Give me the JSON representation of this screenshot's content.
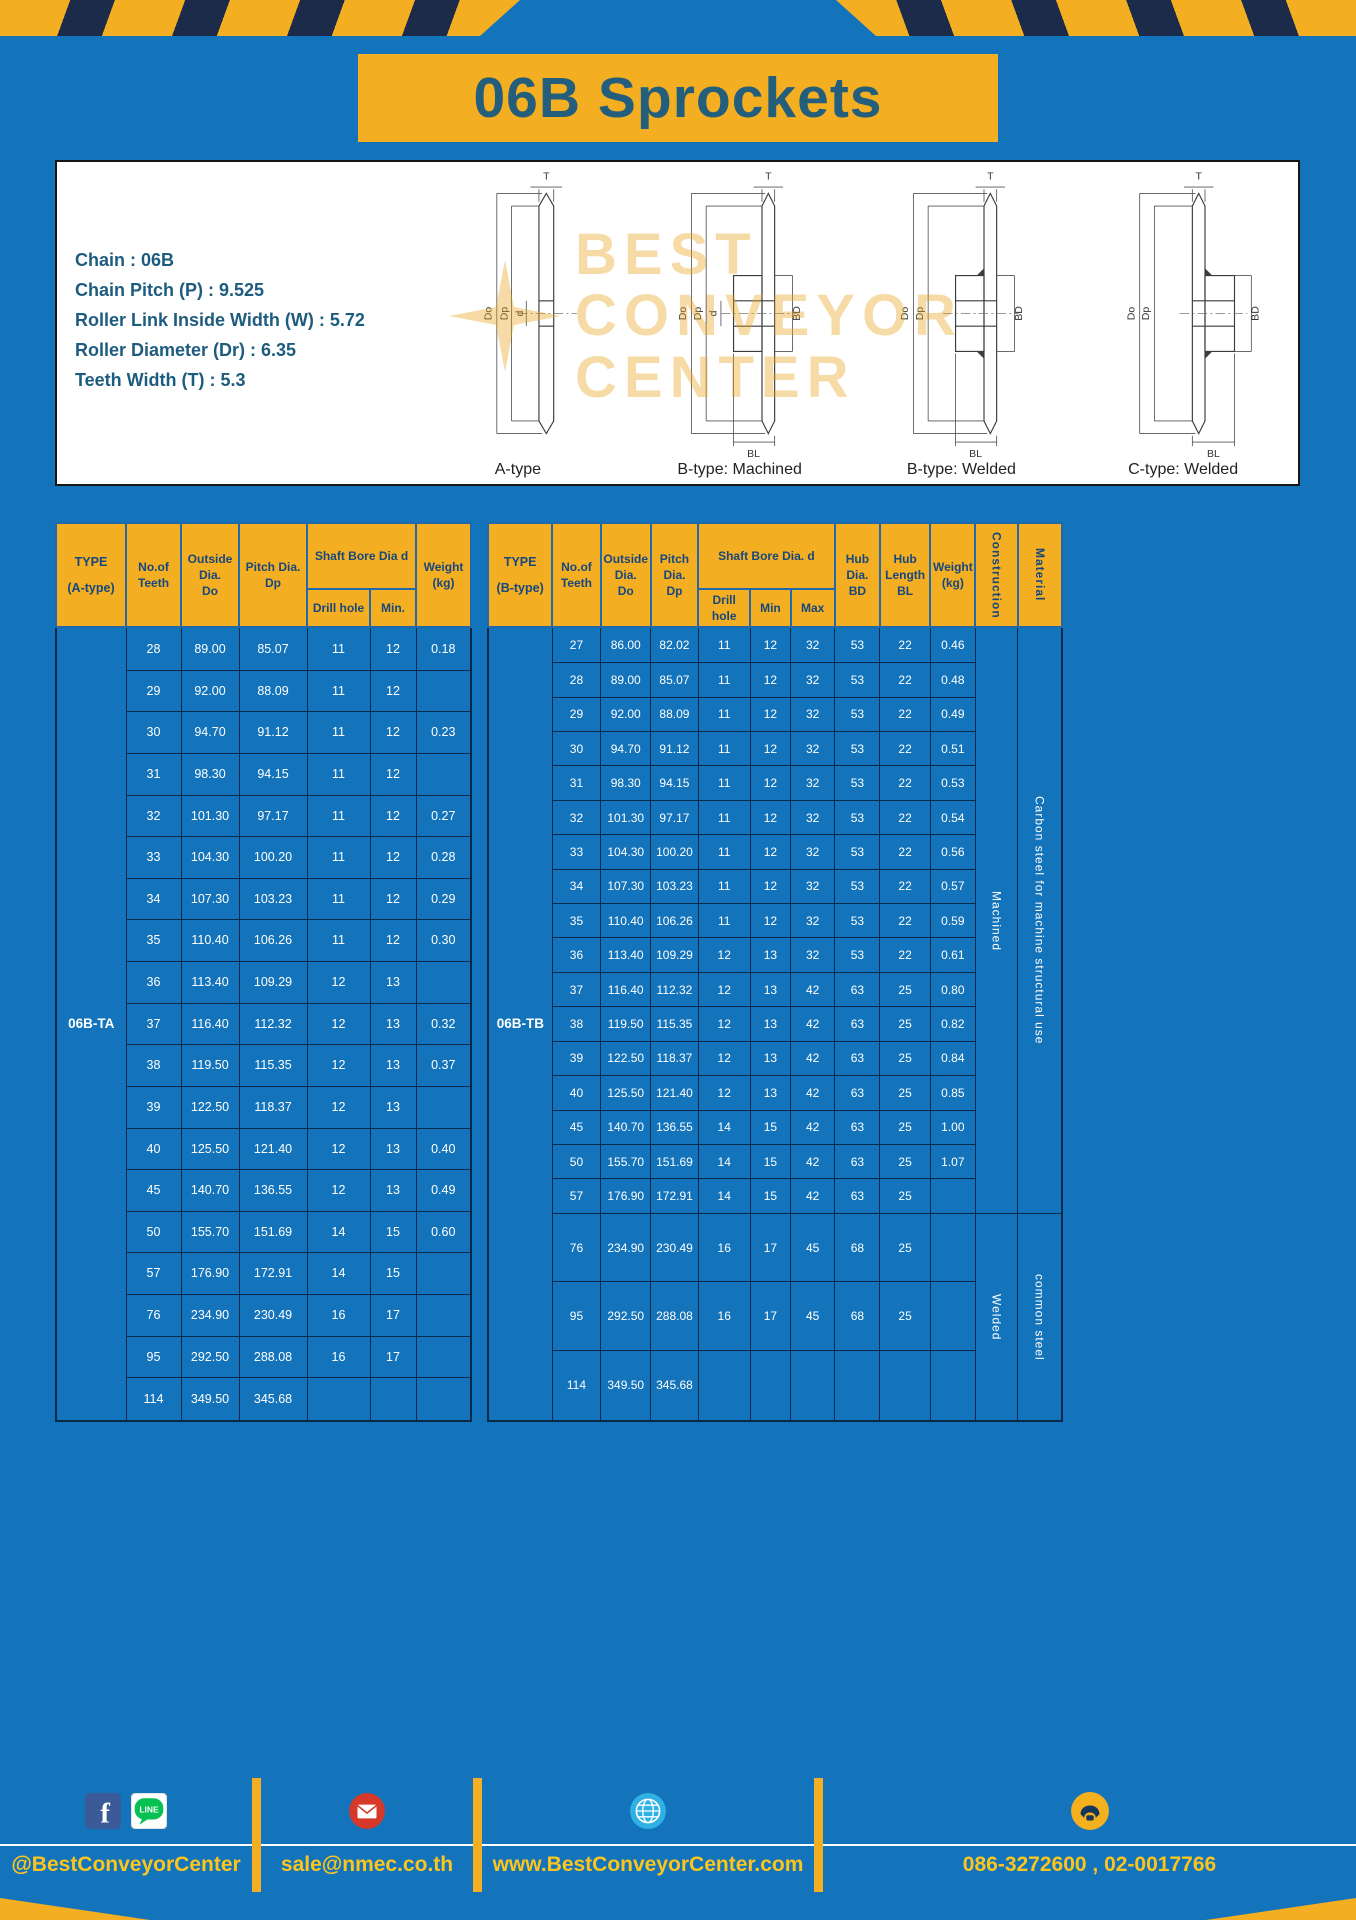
{
  "page": {
    "title": "06B Sprockets"
  },
  "specs": {
    "lines": [
      "Chain : 06B",
      "Chain Pitch (P) : 9.525",
      "Roller Link Inside Width (W) : 5.72",
      "Roller Diameter (Dr) : 6.35",
      "Teeth Width (T) : 5.3"
    ]
  },
  "drawings": {
    "captions": [
      "A-type",
      "B-type: Machined",
      "B-type: Welded",
      "C-type: Welded"
    ],
    "dims": {
      "t": "T",
      "outside": "Do",
      "pitch": "Dp",
      "bore": "d",
      "hub": "BD",
      "hub_len": "BL"
    },
    "watermark": [
      "BEST",
      "CONVEYOR",
      "CENTER"
    ]
  },
  "tables": {
    "left": {
      "headers": {
        "type": "TYPE\n(A-type)",
        "teeth": "No.of\nTeeth",
        "outside": "Outside\nDia.\nDo",
        "pitch": "Pitch Dia.\nDp",
        "bore_group": "Shaft Bore Dia d",
        "drill": "Drill hole",
        "min": "Min.",
        "weight": "Weight\n(kg)"
      },
      "type_value": "06B-TA",
      "rows": [
        [
          "28",
          "89.00",
          "85.07",
          "11",
          "12",
          "0.18"
        ],
        [
          "29",
          "92.00",
          "88.09",
          "11",
          "12",
          ""
        ],
        [
          "30",
          "94.70",
          "91.12",
          "11",
          "12",
          "0.23"
        ],
        [
          "31",
          "98.30",
          "94.15",
          "11",
          "12",
          ""
        ],
        [
          "32",
          "101.30",
          "97.17",
          "11",
          "12",
          "0.27"
        ],
        [
          "33",
          "104.30",
          "100.20",
          "11",
          "12",
          "0.28"
        ],
        [
          "34",
          "107.30",
          "103.23",
          "11",
          "12",
          "0.29"
        ],
        [
          "35",
          "110.40",
          "106.26",
          "11",
          "12",
          "0.30"
        ],
        [
          "36",
          "113.40",
          "109.29",
          "12",
          "13",
          ""
        ],
        [
          "37",
          "116.40",
          "112.32",
          "12",
          "13",
          "0.32"
        ],
        [
          "38",
          "119.50",
          "115.35",
          "12",
          "13",
          "0.37"
        ],
        [
          "39",
          "122.50",
          "118.37",
          "12",
          "13",
          ""
        ],
        [
          "40",
          "125.50",
          "121.40",
          "12",
          "13",
          "0.40"
        ],
        [
          "45",
          "140.70",
          "136.55",
          "12",
          "13",
          "0.49"
        ],
        [
          "50",
          "155.70",
          "151.69",
          "14",
          "15",
          "0.60"
        ],
        [
          "57",
          "176.90",
          "172.91",
          "14",
          "15",
          ""
        ],
        [
          "76",
          "234.90",
          "230.49",
          "16",
          "17",
          ""
        ],
        [
          "95",
          "292.50",
          "288.08",
          "16",
          "17",
          ""
        ],
        [
          "114",
          "349.50",
          "345.68",
          "",
          "",
          ""
        ]
      ]
    },
    "right": {
      "headers": {
        "type": "TYPE\n(B-type)",
        "teeth": "No.of\nTeeth",
        "outside": "Outside\nDia.\nDo",
        "pitch": "Pitch\nDia.\nDp",
        "bore_group": "Shaft Bore Dia. d",
        "drill": "Drill hole",
        "min": "Min",
        "max": "Max",
        "hub_dia": "Hub\nDia.\nBD",
        "hub_len": "Hub\nLength\nBL",
        "weight": "Weight\n(kg)",
        "construction": "Construction",
        "material": "Material"
      },
      "type_value": "06B-TB",
      "rows": [
        [
          "27",
          "86.00",
          "82.02",
          "11",
          "12",
          "32",
          "53",
          "22",
          "0.46"
        ],
        [
          "28",
          "89.00",
          "85.07",
          "11",
          "12",
          "32",
          "53",
          "22",
          "0.48"
        ],
        [
          "29",
          "92.00",
          "88.09",
          "11",
          "12",
          "32",
          "53",
          "22",
          "0.49"
        ],
        [
          "30",
          "94.70",
          "91.12",
          "11",
          "12",
          "32",
          "53",
          "22",
          "0.51"
        ],
        [
          "31",
          "98.30",
          "94.15",
          "11",
          "12",
          "32",
          "53",
          "22",
          "0.53"
        ],
        [
          "32",
          "101.30",
          "97.17",
          "11",
          "12",
          "32",
          "53",
          "22",
          "0.54"
        ],
        [
          "33",
          "104.30",
          "100.20",
          "11",
          "12",
          "32",
          "53",
          "22",
          "0.56"
        ],
        [
          "34",
          "107.30",
          "103.23",
          "11",
          "12",
          "32",
          "53",
          "22",
          "0.57"
        ],
        [
          "35",
          "110.40",
          "106.26",
          "11",
          "12",
          "32",
          "53",
          "22",
          "0.59"
        ],
        [
          "36",
          "113.40",
          "109.29",
          "12",
          "13",
          "32",
          "53",
          "22",
          "0.61"
        ],
        [
          "37",
          "116.40",
          "112.32",
          "12",
          "13",
          "42",
          "63",
          "25",
          "0.80"
        ],
        [
          "38",
          "119.50",
          "115.35",
          "12",
          "13",
          "42",
          "63",
          "25",
          "0.82"
        ],
        [
          "39",
          "122.50",
          "118.37",
          "12",
          "13",
          "42",
          "63",
          "25",
          "0.84"
        ],
        [
          "40",
          "125.50",
          "121.40",
          "12",
          "13",
          "42",
          "63",
          "25",
          "0.85"
        ],
        [
          "45",
          "140.70",
          "136.55",
          "14",
          "15",
          "42",
          "63",
          "25",
          "1.00"
        ],
        [
          "50",
          "155.70",
          "151.69",
          "14",
          "15",
          "42",
          "63",
          "25",
          "1.07"
        ],
        [
          "57",
          "176.90",
          "172.91",
          "14",
          "15",
          "42",
          "63",
          "25",
          ""
        ],
        [
          "76",
          "234.90",
          "230.49",
          "16",
          "17",
          "45",
          "68",
          "25",
          ""
        ],
        [
          "95",
          "292.50",
          "288.08",
          "16",
          "17",
          "45",
          "68",
          "25",
          ""
        ],
        [
          "114",
          "349.50",
          "345.68",
          "",
          "",
          "",
          "",
          "",
          ""
        ]
      ],
      "construction_spans": [
        {
          "label": "Machined",
          "rows": 17
        },
        {
          "label": "Welded",
          "rows": 3
        }
      ],
      "material_spans": [
        {
          "label": "Carbon steel for machine structural use",
          "rows": 17
        },
        {
          "label": "common steel",
          "rows": 3
        }
      ]
    }
  },
  "footer": {
    "sections": [
      {
        "label": "@BestConveyorCenter"
      },
      {
        "label": "sale@nmec.co.th"
      },
      {
        "label": "www.BestConveyorCenter.com"
      },
      {
        "label": "086-3272600 , 02-0017766"
      }
    ],
    "facebook_letter": "f",
    "line_text": "LINE"
  },
  "colors": {
    "page_bg": "#1474bb",
    "accent_yellow": "#f3ae21",
    "title_text": "#235e7d",
    "header_text": "#17477e",
    "footer_text": "#fcc51d",
    "stripe_navy": "#1b2b49"
  }
}
